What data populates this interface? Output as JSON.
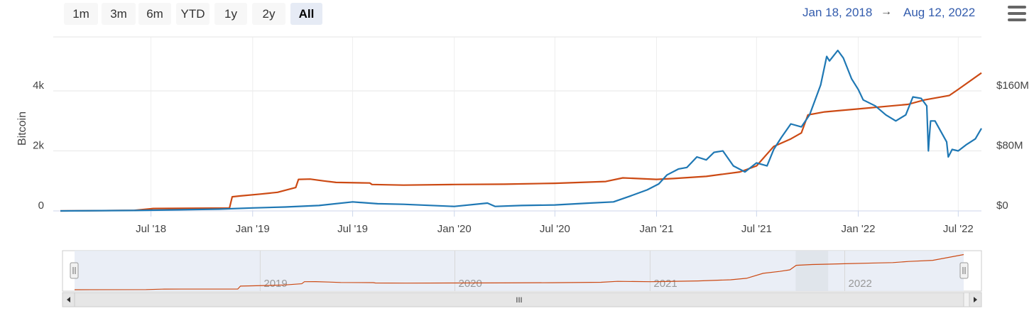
{
  "range_selector": {
    "buttons": [
      "1m",
      "3m",
      "6m",
      "YTD",
      "1y",
      "2y",
      "All"
    ],
    "selected": "All"
  },
  "date_range": {
    "from": "Jan 18, 2018",
    "arrow": "→",
    "to": "Aug 12, 2022"
  },
  "menu": {
    "icon": "hamburger-menu-icon"
  },
  "chart_data": {
    "type": "line",
    "x_start": "2018-01-18",
    "x_end": "2022-08-12",
    "x_tick_labels": [
      "Jul '18",
      "Jan '19",
      "Jul '19",
      "Jan '20",
      "Jul '20",
      "Jan '21",
      "Jul '21",
      "Jan '22",
      "Jul '22"
    ],
    "ylabel": "Bitcoin",
    "y_tick_labels": [
      "0",
      "2k",
      "4k"
    ],
    "ylim": [
      0,
      5800
    ],
    "y2_tick_labels": [
      "$0",
      "$80M",
      "$160M"
    ],
    "y2lim": [
      0,
      232000000
    ],
    "grid": true,
    "series": [
      {
        "color": "#cc4a14",
        "axis": "left",
        "x": [
          "2018-01-18",
          "2018-06-01",
          "2018-07-01",
          "2018-07-05",
          "2018-11-20",
          "2018-11-25",
          "2018-12-10",
          "2019-01-15",
          "2019-02-15",
          "2019-03-20",
          "2019-03-25",
          "2019-04-15",
          "2019-05-10",
          "2019-06-01",
          "2019-08-01",
          "2019-08-05",
          "2019-10-01",
          "2020-01-01",
          "2020-04-01",
          "2020-07-01",
          "2020-10-01",
          "2020-11-01",
          "2021-01-01",
          "2021-02-01",
          "2021-04-01",
          "2021-06-01",
          "2021-07-01",
          "2021-08-01",
          "2021-09-01",
          "2021-09-20",
          "2021-10-02",
          "2021-11-01",
          "2021-12-01",
          "2022-01-01",
          "2022-03-01",
          "2022-04-01",
          "2022-05-01",
          "2022-06-15",
          "2022-07-01",
          "2022-08-12"
        ],
        "values": [
          0,
          20,
          70,
          80,
          95,
          470,
          500,
          560,
          620,
          780,
          1050,
          1060,
          1000,
          950,
          930,
          880,
          860,
          880,
          890,
          920,
          980,
          1100,
          1050,
          1080,
          1150,
          1300,
          1500,
          2150,
          2400,
          2600,
          3200,
          3300,
          3350,
          3400,
          3500,
          3550,
          3700,
          3850,
          4050,
          4600
        ]
      },
      {
        "color": "#1f78b4",
        "axis": "left",
        "x": [
          "2018-01-18",
          "2018-06-01",
          "2018-11-01",
          "2019-01-01",
          "2019-03-01",
          "2019-05-01",
          "2019-07-01",
          "2019-08-15",
          "2019-10-01",
          "2020-01-01",
          "2020-03-01",
          "2020-03-15",
          "2020-05-01",
          "2020-07-01",
          "2020-09-01",
          "2020-10-15",
          "2020-11-15",
          "2020-12-15",
          "2021-01-05",
          "2021-01-20",
          "2021-02-10",
          "2021-02-25",
          "2021-03-15",
          "2021-04-01",
          "2021-04-15",
          "2021-05-01",
          "2021-05-20",
          "2021-06-10",
          "2021-07-01",
          "2021-07-20",
          "2021-08-01",
          "2021-08-15",
          "2021-09-01",
          "2021-09-20",
          "2021-10-05",
          "2021-10-15",
          "2021-10-25",
          "2021-11-05",
          "2021-11-10",
          "2021-11-25",
          "2021-12-05",
          "2021-12-20",
          "2022-01-01",
          "2022-01-10",
          "2022-02-01",
          "2022-02-20",
          "2022-03-10",
          "2022-03-28",
          "2022-04-10",
          "2022-04-25",
          "2022-05-05",
          "2022-05-08",
          "2022-05-09",
          "2022-05-12",
          "2022-05-20",
          "2022-06-10",
          "2022-06-13",
          "2022-06-20",
          "2022-07-01",
          "2022-07-15",
          "2022-08-01",
          "2022-08-12"
        ],
        "values": [
          0,
          15,
          60,
          100,
          130,
          180,
          300,
          240,
          220,
          150,
          260,
          150,
          180,
          200,
          260,
          300,
          500,
          700,
          900,
          1200,
          1400,
          1450,
          1800,
          1700,
          1950,
          2000,
          1500,
          1300,
          1600,
          1500,
          2050,
          2450,
          2900,
          2800,
          3200,
          3700,
          4200,
          5150,
          5000,
          5350,
          5100,
          4400,
          4050,
          3700,
          3500,
          3200,
          3000,
          3200,
          3800,
          3750,
          3500,
          2000,
          2300,
          3000,
          3000,
          2300,
          1800,
          2050,
          2000,
          2200,
          2400,
          2750
        ]
      }
    ],
    "navigator": {
      "x_tick_labels": [
        "2019",
        "2020",
        "2021",
        "2022"
      ],
      "shaded_gap": [
        "2021-10-01",
        "2021-12-01"
      ]
    },
    "scrollbar": {
      "grip": "III"
    }
  }
}
